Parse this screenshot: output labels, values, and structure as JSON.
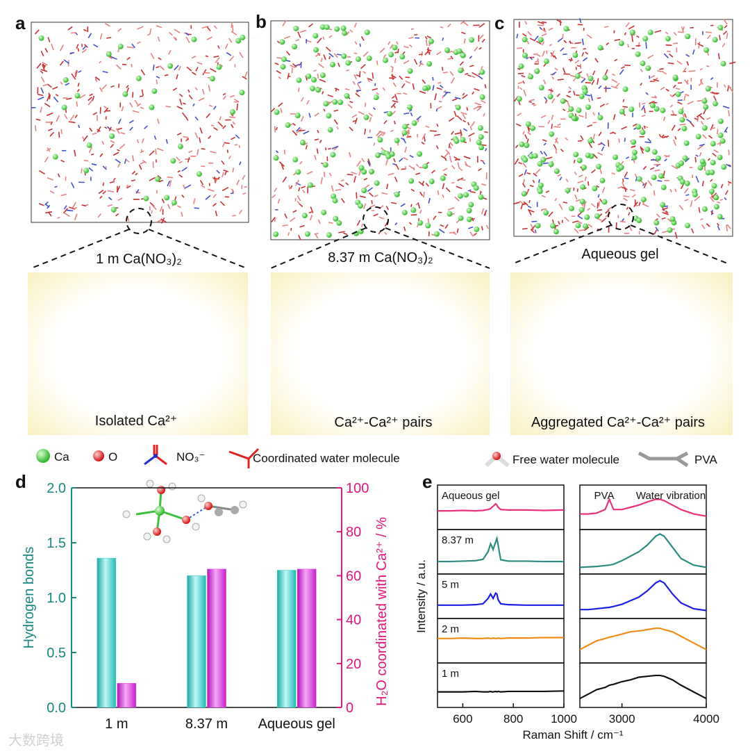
{
  "panels": {
    "a": {
      "letter": "a",
      "caption": "1 m Ca(NO₃)₂",
      "inset_caption": "Isolated Ca²⁺"
    },
    "b": {
      "letter": "b",
      "caption": "8.37 m Ca(NO₃)₂",
      "inset_caption": "Ca²⁺-Ca²⁺ pairs"
    },
    "c": {
      "letter": "c",
      "caption": "Aqueous gel",
      "inset_caption": "Aggregated Ca²⁺-Ca²⁺ pairs"
    },
    "d": {
      "letter": "d"
    },
    "e": {
      "letter": "e"
    }
  },
  "legend": [
    "Ca",
    "O",
    "NO₃⁻",
    "Coordinated water molecule",
    "Free water molecule",
    "PVA"
  ],
  "watermark": "大数跨境",
  "chart_data": [
    {
      "type": "bar",
      "categories": [
        "1 m",
        "8.37 m",
        "Aqueous gel"
      ],
      "ylabel": "Hydrogen bonds",
      "ylabel_color": "#17877f",
      "y2label": "H₂O coordinated with Ca²⁺ / %",
      "y2label_color": "#e0157a",
      "ylim": [
        0,
        2
      ],
      "yticks": [
        {
          "value": 0,
          "label": "0.0"
        },
        {
          "value": 0.5,
          "label": "0.5"
        },
        {
          "value": 1,
          "label": "1.0"
        },
        {
          "value": 1.5,
          "label": "1.5"
        },
        {
          "value": 2,
          "label": "2.0"
        }
      ],
      "y2lim": [
        0,
        100
      ],
      "y2ticks": [
        0,
        20,
        40,
        60,
        80,
        100
      ],
      "series": [
        {
          "color": "#3fd3cf",
          "values": [
            1.36,
            1.2,
            1.25
          ]
        },
        {
          "color": "#e23ee6",
          "axis": "y2",
          "values": [
            11,
            63,
            63
          ]
        }
      ]
    },
    {
      "type": "line",
      "ylabel": "Intensity / a.u.",
      "xlabel": "Raman Shift / cm⁻¹",
      "x": [
        500,
        550,
        600,
        650,
        680,
        700,
        710,
        715,
        720,
        730,
        735,
        740,
        750,
        780,
        850,
        920,
        1000
      ],
      "xlim": [
        500,
        1000
      ],
      "xticks": [
        600,
        800,
        1000
      ],
      "ylim": [
        0,
        1
      ],
      "series": [
        {
          "name": "Aqueous gel",
          "color": "#e8317a",
          "values": [
            0.42,
            0.42,
            0.43,
            0.42,
            0.43,
            0.45,
            0.47,
            0.5,
            0.52,
            0.58,
            0.55,
            0.5,
            0.45,
            0.44,
            0.44,
            0.43,
            0.44
          ]
        },
        {
          "name": "8.37 m",
          "color": "#2a8c80",
          "values": [
            0.28,
            0.28,
            0.29,
            0.3,
            0.33,
            0.5,
            0.68,
            0.62,
            0.55,
            0.72,
            0.8,
            0.65,
            0.32,
            0.29,
            0.29,
            0.28,
            0.28
          ]
        },
        {
          "name": "5 m",
          "color": "#1a1ee0",
          "values": [
            0.3,
            0.3,
            0.3,
            0.31,
            0.33,
            0.45,
            0.55,
            0.5,
            0.45,
            0.57,
            0.55,
            0.42,
            0.33,
            0.31,
            0.3,
            0.3,
            0.3
          ]
        },
        {
          "name": "2 m",
          "color": "#f08c14",
          "values": [
            0.55,
            0.55,
            0.56,
            0.55,
            0.55,
            0.56,
            0.55,
            0.55,
            0.56,
            0.55,
            0.55,
            0.56,
            0.55,
            0.56,
            0.56,
            0.57,
            0.57
          ]
        },
        {
          "name": "1 m",
          "color": "#111111",
          "values": [
            0.35,
            0.35,
            0.35,
            0.36,
            0.35,
            0.35,
            0.36,
            0.35,
            0.35,
            0.36,
            0.35,
            0.36,
            0.35,
            0.36,
            0.36,
            0.36,
            0.37
          ]
        }
      ]
    },
    {
      "type": "line",
      "annotations": [
        "PVA",
        "Water vibration"
      ],
      "x": [
        2500,
        2600,
        2700,
        2800,
        2850,
        2900,
        3000,
        3100,
        3200,
        3300,
        3400,
        3450,
        3500,
        3600,
        3700,
        3850,
        4000
      ],
      "xlim": [
        2500,
        4000
      ],
      "xticks": [
        3000,
        4000
      ],
      "ylim": [
        0,
        1
      ],
      "series": [
        {
          "color": "#e8317a",
          "values": [
            0.35,
            0.35,
            0.37,
            0.45,
            0.68,
            0.45,
            0.45,
            0.5,
            0.55,
            0.62,
            0.68,
            0.68,
            0.65,
            0.55,
            0.45,
            0.35,
            0.3
          ]
        },
        {
          "color": "#2a8c80",
          "values": [
            0.15,
            0.16,
            0.17,
            0.19,
            0.2,
            0.22,
            0.3,
            0.4,
            0.5,
            0.65,
            0.85,
            0.9,
            0.85,
            0.6,
            0.35,
            0.2,
            0.15
          ]
        },
        {
          "color": "#1a1ee0",
          "values": [
            0.2,
            0.2,
            0.22,
            0.24,
            0.25,
            0.27,
            0.32,
            0.4,
            0.48,
            0.62,
            0.8,
            0.85,
            0.8,
            0.55,
            0.35,
            0.22,
            0.18
          ]
        },
        {
          "color": "#f08c14",
          "values": [
            0.3,
            0.4,
            0.5,
            0.55,
            0.58,
            0.6,
            0.65,
            0.7,
            0.72,
            0.75,
            0.78,
            0.78,
            0.75,
            0.7,
            0.6,
            0.45,
            0.3
          ]
        },
        {
          "color": "#111111",
          "values": [
            0.2,
            0.3,
            0.4,
            0.45,
            0.5,
            0.52,
            0.58,
            0.62,
            0.68,
            0.7,
            0.72,
            0.72,
            0.7,
            0.62,
            0.5,
            0.35,
            0.2
          ]
        }
      ]
    }
  ]
}
